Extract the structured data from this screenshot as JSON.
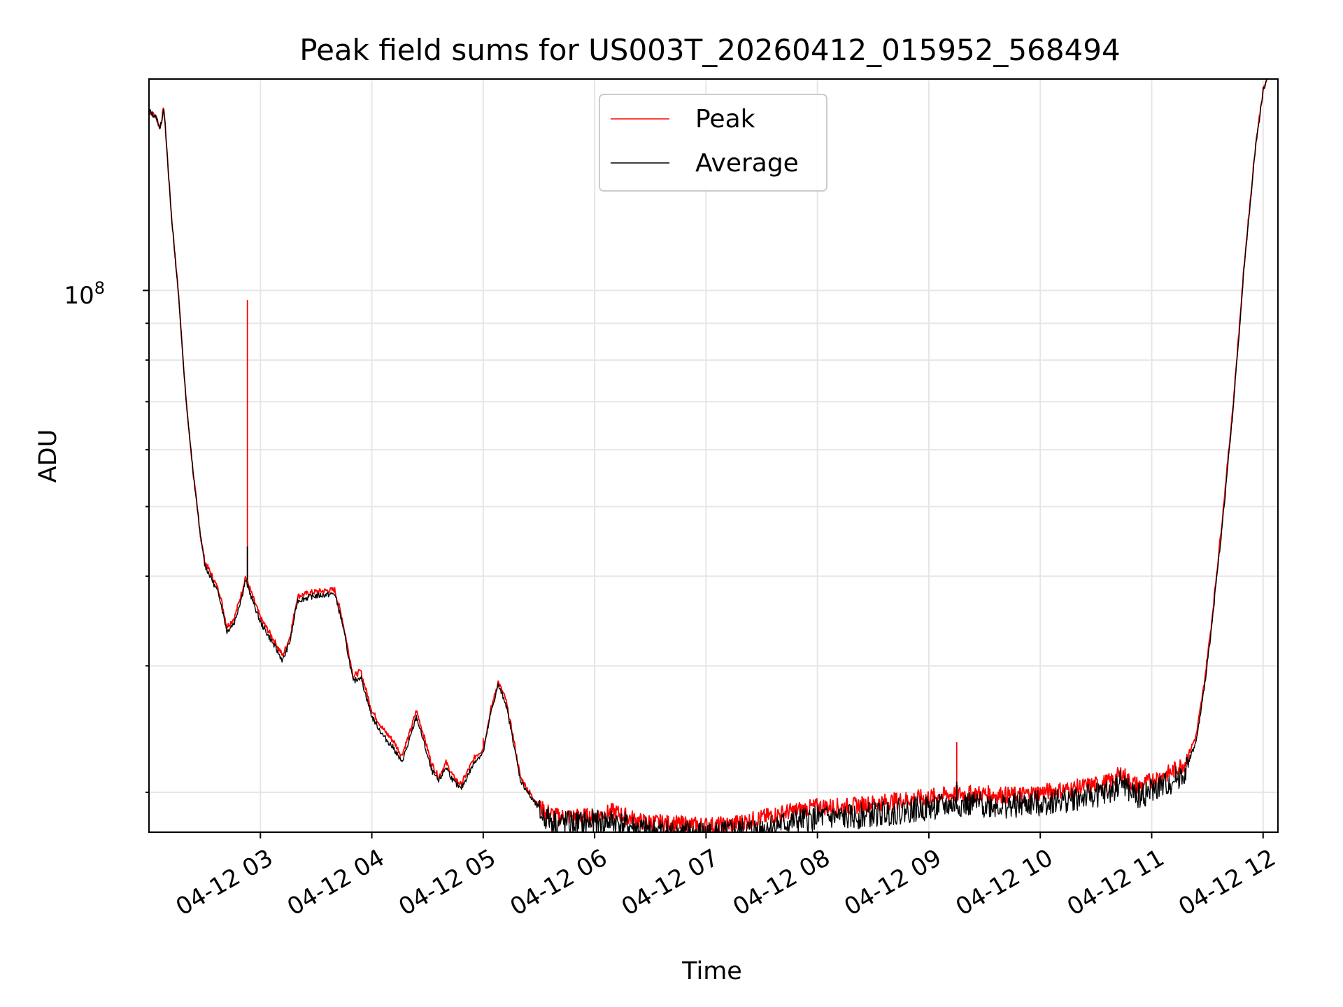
{
  "chart_data": {
    "type": "line",
    "title": "Peak field sums for US003T_20260412_015952_568494",
    "xlabel": "Time",
    "ylabel": "ADU",
    "y_scale": "log",
    "y_tick_label": {
      "base": "10",
      "exp": "8",
      "value": 100000000
    },
    "xlim": [
      "04-12 02:00",
      "04-12 12:08"
    ],
    "ylim": [
      17600000,
      197000000
    ],
    "x_tick_labels": [
      "04-12 03",
      "04-12 04",
      "04-12 05",
      "04-12 06",
      "04-12 07",
      "04-12 08",
      "04-12 09",
      "04-12 10",
      "04-12 11",
      "04-12 12"
    ],
    "grid": true,
    "legend_position": "upper center",
    "series": [
      {
        "name": "Peak",
        "color": "#ff0000",
        "points": [
          [
            "04-12 02:00",
            178000000
          ],
          [
            "04-12 02:04",
            174000000
          ],
          [
            "04-12 02:06",
            168000000
          ],
          [
            "04-12 02:08",
            180000000
          ],
          [
            "04-12 02:12",
            128000000
          ],
          [
            "04-12 02:16",
            98000000
          ],
          [
            "04-12 02:20",
            70000000
          ],
          [
            "04-12 02:24",
            55000000
          ],
          [
            "04-12 02:28",
            45000000
          ],
          [
            "04-12 02:30",
            42000000
          ],
          [
            "04-12 02:34",
            40000000
          ],
          [
            "04-12 02:38",
            38000000
          ],
          [
            "04-12 02:42",
            34000000
          ],
          [
            "04-12 02:46",
            35000000
          ],
          [
            "04-12 02:50",
            38000000
          ],
          [
            "04-12 02:52",
            40000000
          ],
          [
            "04-12 02:55",
            38000000
          ],
          [
            "04-12 03:00",
            35000000
          ],
          [
            "04-12 03:06",
            33000000
          ],
          [
            "04-12 03:12",
            31000000
          ],
          [
            "04-12 03:16",
            33000000
          ],
          [
            "04-12 03:20",
            37500000
          ],
          [
            "04-12 03:28",
            38000000
          ],
          [
            "04-12 03:40",
            38300000
          ],
          [
            "04-12 03:44",
            35000000
          ],
          [
            "04-12 03:50",
            29000000
          ],
          [
            "04-12 03:54",
            29500000
          ],
          [
            "04-12 04:00",
            26000000
          ],
          [
            "04-12 04:06",
            24500000
          ],
          [
            "04-12 04:12",
            23500000
          ],
          [
            "04-12 04:16",
            22500000
          ],
          [
            "04-12 04:20",
            24000000
          ],
          [
            "04-12 04:24",
            26000000
          ],
          [
            "04-12 04:28",
            24000000
          ],
          [
            "04-12 04:32",
            22000000
          ],
          [
            "04-12 04:36",
            21000000
          ],
          [
            "04-12 04:40",
            22000000
          ],
          [
            "04-12 04:44",
            21000000
          ],
          [
            "04-12 04:48",
            20500000
          ],
          [
            "04-12 04:52",
            21500000
          ],
          [
            "04-12 04:56",
            22500000
          ],
          [
            "04-12 05:00",
            23000000
          ],
          [
            "04-12 05:04",
            26000000
          ],
          [
            "04-12 05:08",
            28500000
          ],
          [
            "04-12 05:12",
            27000000
          ],
          [
            "04-12 05:16",
            24000000
          ],
          [
            "04-12 05:20",
            21000000
          ],
          [
            "04-12 05:26",
            19800000
          ],
          [
            "04-12 05:32",
            18900000
          ],
          [
            "04-12 05:40",
            18500000
          ],
          [
            "04-12 05:50",
            18500000
          ],
          [
            "04-12 06:00",
            18500000
          ],
          [
            "04-12 06:10",
            18800000
          ],
          [
            "04-12 06:25",
            18200000
          ],
          [
            "04-12 06:40",
            18100000
          ],
          [
            "04-12 06:55",
            18000000
          ],
          [
            "04-12 07:10",
            18000000
          ],
          [
            "04-12 07:25",
            18300000
          ],
          [
            "04-12 07:45",
            18800000
          ],
          [
            "04-12 08:00",
            19100000
          ],
          [
            "04-12 08:15",
            19100000
          ],
          [
            "04-12 08:30",
            19300000
          ],
          [
            "04-12 08:45",
            19500000
          ],
          [
            "04-12 09:00",
            19700000
          ],
          [
            "04-12 09:15",
            19900000
          ],
          [
            "04-12 09:30",
            19900000
          ],
          [
            "04-12 09:45",
            19800000
          ],
          [
            "04-12 10:00",
            20000000
          ],
          [
            "04-12 10:15",
            20200000
          ],
          [
            "04-12 10:30",
            20500000
          ],
          [
            "04-12 10:38",
            20700000
          ],
          [
            "04-12 10:44",
            21300000
          ],
          [
            "04-12 10:48",
            20700000
          ],
          [
            "04-12 10:54",
            20400000
          ],
          [
            "04-12 11:00",
            20800000
          ],
          [
            "04-12 11:10",
            21300000
          ],
          [
            "04-12 11:18",
            22000000
          ],
          [
            "04-12 11:24",
            24000000
          ],
          [
            "04-12 11:28",
            28000000
          ],
          [
            "04-12 11:32",
            34000000
          ],
          [
            "04-12 11:38",
            48000000
          ],
          [
            "04-12 11:44",
            70000000
          ],
          [
            "04-12 11:50",
            110000000
          ],
          [
            "04-12 11:56",
            160000000
          ],
          [
            "04-12 12:00",
            190000000
          ],
          [
            "04-12 12:02",
            197000000
          ]
        ]
      },
      {
        "name": "Average",
        "color": "#000000",
        "points": [
          [
            "04-12 02:00",
            178000000
          ],
          [
            "04-12 02:04",
            174000000
          ],
          [
            "04-12 02:06",
            168000000
          ],
          [
            "04-12 02:08",
            180000000
          ],
          [
            "04-12 02:12",
            128000000
          ],
          [
            "04-12 02:16",
            98000000
          ],
          [
            "04-12 02:20",
            70000000
          ],
          [
            "04-12 02:24",
            55000000
          ],
          [
            "04-12 02:28",
            45000000
          ],
          [
            "04-12 02:30",
            41500000
          ],
          [
            "04-12 02:34",
            39500000
          ],
          [
            "04-12 02:38",
            37500000
          ],
          [
            "04-12 02:42",
            33500000
          ],
          [
            "04-12 02:46",
            34500000
          ],
          [
            "04-12 02:50",
            37500000
          ],
          [
            "04-12 02:52",
            39500000
          ],
          [
            "04-12 02:55",
            37500000
          ],
          [
            "04-12 03:00",
            34500000
          ],
          [
            "04-12 03:06",
            32500000
          ],
          [
            "04-12 03:12",
            30500000
          ],
          [
            "04-12 03:16",
            32500000
          ],
          [
            "04-12 03:20",
            37000000
          ],
          [
            "04-12 03:28",
            37500000
          ],
          [
            "04-12 03:40",
            37800000
          ],
          [
            "04-12 03:44",
            34500000
          ],
          [
            "04-12 03:50",
            28500000
          ],
          [
            "04-12 03:54",
            29000000
          ],
          [
            "04-12 04:00",
            25500000
          ],
          [
            "04-12 04:06",
            24000000
          ],
          [
            "04-12 04:12",
            23000000
          ],
          [
            "04-12 04:16",
            22000000
          ],
          [
            "04-12 04:20",
            23500000
          ],
          [
            "04-12 04:24",
            25500000
          ],
          [
            "04-12 04:28",
            23500000
          ],
          [
            "04-12 04:32",
            21500000
          ],
          [
            "04-12 04:36",
            20700000
          ],
          [
            "04-12 04:40",
            21700000
          ],
          [
            "04-12 04:44",
            20700000
          ],
          [
            "04-12 04:48",
            20200000
          ],
          [
            "04-12 04:52",
            21200000
          ],
          [
            "04-12 04:56",
            22200000
          ],
          [
            "04-12 05:00",
            22700000
          ],
          [
            "04-12 05:04",
            25700000
          ],
          [
            "04-12 05:08",
            28200000
          ],
          [
            "04-12 05:12",
            26700000
          ],
          [
            "04-12 05:16",
            23700000
          ],
          [
            "04-12 05:20",
            20800000
          ],
          [
            "04-12 05:26",
            19600000
          ],
          [
            "04-12 05:32",
            18700000
          ],
          [
            "04-12 05:40",
            18300000
          ],
          [
            "04-12 05:50",
            18300000
          ],
          [
            "04-12 06:00",
            18300000
          ],
          [
            "04-12 06:10",
            18400000
          ],
          [
            "04-12 06:25",
            17900000
          ],
          [
            "04-12 06:40",
            17800000
          ],
          [
            "04-12 06:55",
            17700000
          ],
          [
            "04-12 07:10",
            17700000
          ],
          [
            "04-12 07:25",
            17900000
          ],
          [
            "04-12 07:45",
            18300000
          ],
          [
            "04-12 08:00",
            18600000
          ],
          [
            "04-12 08:15",
            18600000
          ],
          [
            "04-12 08:30",
            18800000
          ],
          [
            "04-12 08:45",
            19000000
          ],
          [
            "04-12 09:00",
            19200000
          ],
          [
            "04-12 09:15",
            19400000
          ],
          [
            "04-12 09:30",
            19400000
          ],
          [
            "04-12 09:45",
            19300000
          ],
          [
            "04-12 10:00",
            19500000
          ],
          [
            "04-12 10:15",
            19700000
          ],
          [
            "04-12 10:30",
            20000000
          ],
          [
            "04-12 10:38",
            20200000
          ],
          [
            "04-12 10:44",
            20900000
          ],
          [
            "04-12 10:48",
            20200000
          ],
          [
            "04-12 10:54",
            19900000
          ],
          [
            "04-12 11:00",
            20300000
          ],
          [
            "04-12 11:10",
            20800000
          ],
          [
            "04-12 11:18",
            21500000
          ],
          [
            "04-12 11:24",
            23500000
          ],
          [
            "04-12 11:28",
            27500000
          ],
          [
            "04-12 11:32",
            33500000
          ],
          [
            "04-12 11:38",
            47000000
          ],
          [
            "04-12 11:44",
            69000000
          ],
          [
            "04-12 11:50",
            109000000
          ],
          [
            "04-12 11:56",
            159000000
          ],
          [
            "04-12 12:00",
            189000000
          ],
          [
            "04-12 12:02",
            197000000
          ]
        ]
      }
    ],
    "spikes": [
      {
        "series": "Peak",
        "x": "04-12 02:53",
        "y": 97000000
      },
      {
        "series": "Average",
        "x": "04-12 02:53",
        "y": 44000000
      },
      {
        "series": "Peak",
        "x": "04-12 05:00",
        "y": 23800000
      },
      {
        "series": "Peak",
        "x": "04-12 09:15",
        "y": 23500000
      },
      {
        "series": "Average",
        "x": "04-12 09:15",
        "y": 20700000
      }
    ]
  }
}
